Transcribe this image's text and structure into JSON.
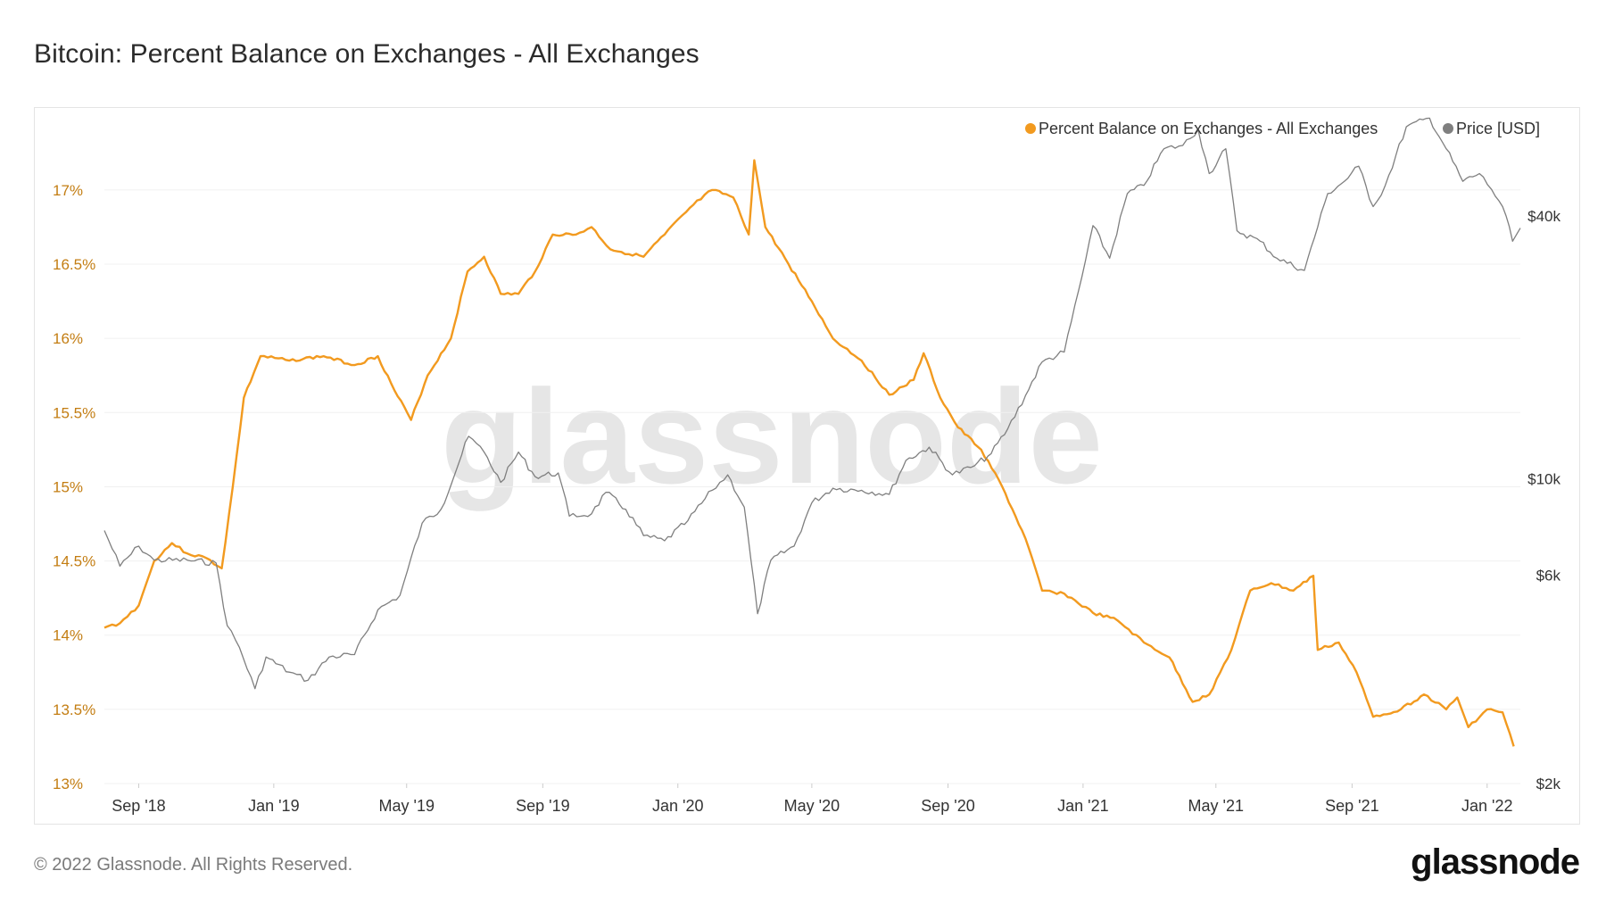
{
  "title": "Bitcoin: Percent Balance on Exchanges - All Exchanges",
  "footer": {
    "copyright": "© 2022 Glassnode. All Rights Reserved.",
    "logo": "glassnode"
  },
  "watermark": "glassnode",
  "colors": {
    "percent_series": "#f29a1f",
    "price_series": "#7f7f7f",
    "left_axis_text": "#c37d12"
  },
  "chart_data": {
    "type": "line",
    "title": "Bitcoin: Percent Balance on Exchanges - All Exchanges",
    "legend_position": "top-right",
    "grid": true,
    "x_ticks": [
      "Sep '18",
      "Jan '19",
      "May '19",
      "Sep '19",
      "Jan '20",
      "May '20",
      "Sep '20",
      "Jan '21",
      "May '21",
      "Sep '21",
      "Jan '22"
    ],
    "y_left": {
      "ticks": [
        "13%",
        "13.5%",
        "14%",
        "14.5%",
        "15%",
        "15.5%",
        "16%",
        "16.5%",
        "17%"
      ],
      "range": [
        13.0,
        17.3
      ]
    },
    "y_right": {
      "scale": "log",
      "ticks": [
        "$2k",
        "$6k",
        "$10k",
        "$40k"
      ],
      "range": [
        2000,
        58000
      ]
    },
    "series": [
      {
        "name": "Percent Balance on Exchanges - All Exchanges",
        "axis": "left",
        "color": "#f29a1f",
        "points": [
          [
            "2018-08-01",
            14.05
          ],
          [
            "2018-08-15",
            14.08
          ],
          [
            "2018-09-01",
            14.2
          ],
          [
            "2018-09-15",
            14.5
          ],
          [
            "2018-10-01",
            14.62
          ],
          [
            "2018-10-15",
            14.55
          ],
          [
            "2018-11-01",
            14.52
          ],
          [
            "2018-11-15",
            14.45
          ],
          [
            "2018-11-25",
            15.0
          ],
          [
            "2018-12-05",
            15.6
          ],
          [
            "2018-12-20",
            15.88
          ],
          [
            "2019-01-15",
            15.85
          ],
          [
            "2019-02-15",
            15.88
          ],
          [
            "2019-03-15",
            15.82
          ],
          [
            "2019-04-05",
            15.88
          ],
          [
            "2019-04-20",
            15.65
          ],
          [
            "2019-05-05",
            15.45
          ],
          [
            "2019-05-20",
            15.75
          ],
          [
            "2019-06-10",
            16.0
          ],
          [
            "2019-06-25",
            16.45
          ],
          [
            "2019-07-10",
            16.55
          ],
          [
            "2019-07-25",
            16.3
          ],
          [
            "2019-08-10",
            16.3
          ],
          [
            "2019-08-25",
            16.45
          ],
          [
            "2019-09-10",
            16.7
          ],
          [
            "2019-10-01",
            16.7
          ],
          [
            "2019-10-15",
            16.75
          ],
          [
            "2019-11-01",
            16.6
          ],
          [
            "2019-12-01",
            16.55
          ],
          [
            "2019-12-20",
            16.7
          ],
          [
            "2020-01-15",
            16.9
          ],
          [
            "2020-02-01",
            17.0
          ],
          [
            "2020-02-20",
            16.95
          ],
          [
            "2020-03-05",
            16.7
          ],
          [
            "2020-03-10",
            17.2
          ],
          [
            "2020-03-20",
            16.75
          ],
          [
            "2020-04-10",
            16.5
          ],
          [
            "2020-05-01",
            16.25
          ],
          [
            "2020-05-20",
            16.0
          ],
          [
            "2020-06-15",
            15.85
          ],
          [
            "2020-07-10",
            15.62
          ],
          [
            "2020-08-01",
            15.72
          ],
          [
            "2020-08-10",
            15.9
          ],
          [
            "2020-08-25",
            15.6
          ],
          [
            "2020-09-10",
            15.4
          ],
          [
            "2020-10-01",
            15.25
          ],
          [
            "2020-10-20",
            15.0
          ],
          [
            "2020-11-10",
            14.65
          ],
          [
            "2020-11-25",
            14.3
          ],
          [
            "2020-12-15",
            14.28
          ],
          [
            "2021-01-10",
            14.15
          ],
          [
            "2021-02-01",
            14.1
          ],
          [
            "2021-02-25",
            13.95
          ],
          [
            "2021-03-20",
            13.85
          ],
          [
            "2021-04-10",
            13.55
          ],
          [
            "2021-04-25",
            13.6
          ],
          [
            "2021-05-15",
            13.9
          ],
          [
            "2021-06-01",
            14.3
          ],
          [
            "2021-06-20",
            14.35
          ],
          [
            "2021-07-10",
            14.3
          ],
          [
            "2021-07-28",
            14.4
          ],
          [
            "2021-08-01",
            13.9
          ],
          [
            "2021-08-20",
            13.95
          ],
          [
            "2021-09-05",
            13.75
          ],
          [
            "2021-09-20",
            13.45
          ],
          [
            "2021-10-15",
            13.5
          ],
          [
            "2021-11-05",
            13.6
          ],
          [
            "2021-11-25",
            13.5
          ],
          [
            "2021-12-05",
            13.58
          ],
          [
            "2021-12-15",
            13.38
          ],
          [
            "2022-01-01",
            13.5
          ],
          [
            "2022-01-15",
            13.48
          ],
          [
            "2022-01-25",
            13.25
          ]
        ]
      },
      {
        "name": "Price [USD]",
        "axis": "right",
        "color": "#7f7f7f",
        "points": [
          [
            "2018-08-01",
            7600
          ],
          [
            "2018-08-15",
            6300
          ],
          [
            "2018-09-01",
            7000
          ],
          [
            "2018-09-15",
            6500
          ],
          [
            "2018-10-15",
            6500
          ],
          [
            "2018-11-10",
            6400
          ],
          [
            "2018-11-20",
            4600
          ],
          [
            "2018-12-01",
            4100
          ],
          [
            "2018-12-15",
            3300
          ],
          [
            "2018-12-25",
            3900
          ],
          [
            "2019-01-15",
            3600
          ],
          [
            "2019-02-01",
            3450
          ],
          [
            "2019-02-20",
            3900
          ],
          [
            "2019-03-15",
            3950
          ],
          [
            "2019-04-05",
            5000
          ],
          [
            "2019-04-25",
            5400
          ],
          [
            "2019-05-15",
            7900
          ],
          [
            "2019-06-01",
            8500
          ],
          [
            "2019-06-26",
            12500
          ],
          [
            "2019-07-10",
            11500
          ],
          [
            "2019-07-25",
            9800
          ],
          [
            "2019-08-10",
            11500
          ],
          [
            "2019-08-25",
            10100
          ],
          [
            "2019-09-15",
            10300
          ],
          [
            "2019-09-25",
            8200
          ],
          [
            "2019-10-15",
            8300
          ],
          [
            "2019-10-28",
            9300
          ],
          [
            "2019-11-15",
            8500
          ],
          [
            "2019-12-01",
            7400
          ],
          [
            "2019-12-20",
            7200
          ],
          [
            "2020-01-10",
            8000
          ],
          [
            "2020-02-01",
            9400
          ],
          [
            "2020-02-15",
            10200
          ],
          [
            "2020-03-01",
            8600
          ],
          [
            "2020-03-13",
            4900
          ],
          [
            "2020-03-25",
            6500
          ],
          [
            "2020-04-15",
            7000
          ],
          [
            "2020-05-01",
            8800
          ],
          [
            "2020-05-20",
            9500
          ],
          [
            "2020-06-15",
            9400
          ],
          [
            "2020-07-10",
            9200
          ],
          [
            "2020-07-25",
            11000
          ],
          [
            "2020-08-15",
            11800
          ],
          [
            "2020-09-05",
            10200
          ],
          [
            "2020-09-25",
            10700
          ],
          [
            "2020-10-10",
            11400
          ],
          [
            "2020-10-25",
            13000
          ],
          [
            "2020-11-10",
            15500
          ],
          [
            "2020-11-25",
            18500
          ],
          [
            "2020-12-15",
            19500
          ],
          [
            "2020-12-31",
            29000
          ],
          [
            "2021-01-10",
            38000
          ],
          [
            "2021-01-25",
            32000
          ],
          [
            "2021-02-10",
            45000
          ],
          [
            "2021-02-25",
            47000
          ],
          [
            "2021-03-15",
            57000
          ],
          [
            "2021-04-01",
            58000
          ],
          [
            "2021-04-15",
            63000
          ],
          [
            "2021-04-25",
            50000
          ],
          [
            "2021-05-10",
            57000
          ],
          [
            "2021-05-20",
            37000
          ],
          [
            "2021-06-10",
            35000
          ],
          [
            "2021-06-25",
            32000
          ],
          [
            "2021-07-20",
            30000
          ],
          [
            "2021-08-10",
            45000
          ],
          [
            "2021-08-25",
            48000
          ],
          [
            "2021-09-07",
            52000
          ],
          [
            "2021-09-20",
            42000
          ],
          [
            "2021-10-01",
            47000
          ],
          [
            "2021-10-20",
            64000
          ],
          [
            "2021-11-10",
            67000
          ],
          [
            "2021-11-25",
            57000
          ],
          [
            "2021-12-10",
            48000
          ],
          [
            "2021-12-25",
            50000
          ],
          [
            "2022-01-05",
            46000
          ],
          [
            "2022-01-15",
            42000
          ],
          [
            "2022-01-24",
            35000
          ],
          [
            "2022-01-31",
            37500
          ]
        ]
      }
    ]
  }
}
